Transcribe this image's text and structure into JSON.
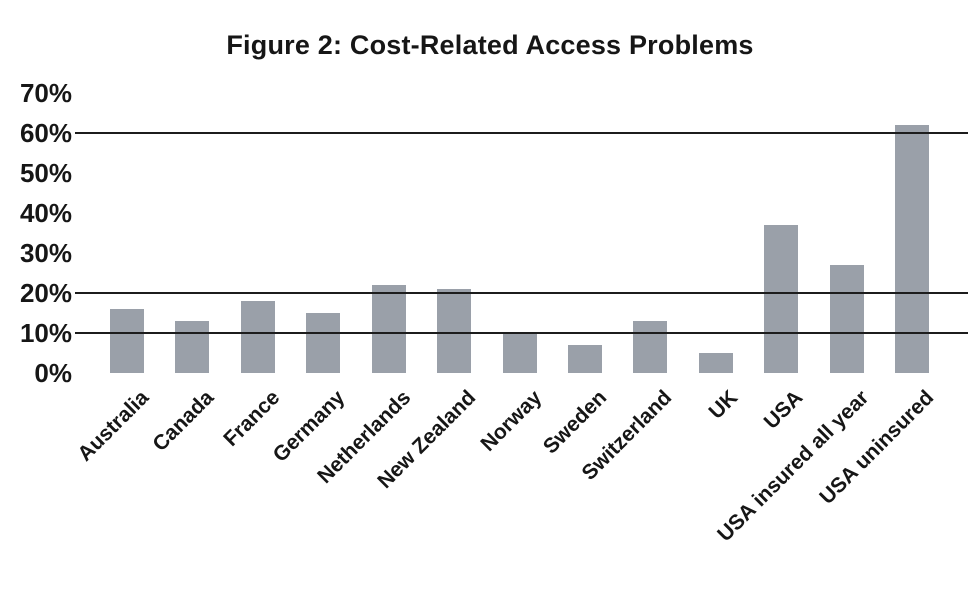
{
  "figure": {
    "title": "Figure 2: Cost-Related Access Problems"
  },
  "chart_data": {
    "type": "bar",
    "title": "Figure 2: Cost-Related Access Problems",
    "categories": [
      "Australia",
      "Canada",
      "France",
      "Germany",
      "Netherlands",
      "New Zealand",
      "Norway",
      "Sweden",
      "Switzerland",
      "UK",
      "USA",
      "USA insured all year",
      "USA uninsured"
    ],
    "values": [
      16,
      13,
      18,
      15,
      22,
      21,
      10,
      7,
      13,
      5,
      37,
      27,
      62
    ],
    "xlabel": "",
    "ylabel": "",
    "ylim": [
      0,
      70
    ],
    "y_tick_values": [
      0,
      10,
      20,
      30,
      40,
      50,
      60,
      70
    ],
    "y_tick_labels": [
      "0%",
      "10%",
      "20%",
      "30%",
      "40%",
      "50%",
      "60%",
      "70%"
    ],
    "gridlines_at": [
      60,
      20,
      10
    ],
    "grid": "partial-horizontal",
    "legend": "none",
    "x_tick_rotation_deg": 45,
    "bar_color": "#9aa0a9",
    "gridline_color": "#1c1c1c",
    "text_color": "#161616",
    "background_color": "#ffffff"
  }
}
